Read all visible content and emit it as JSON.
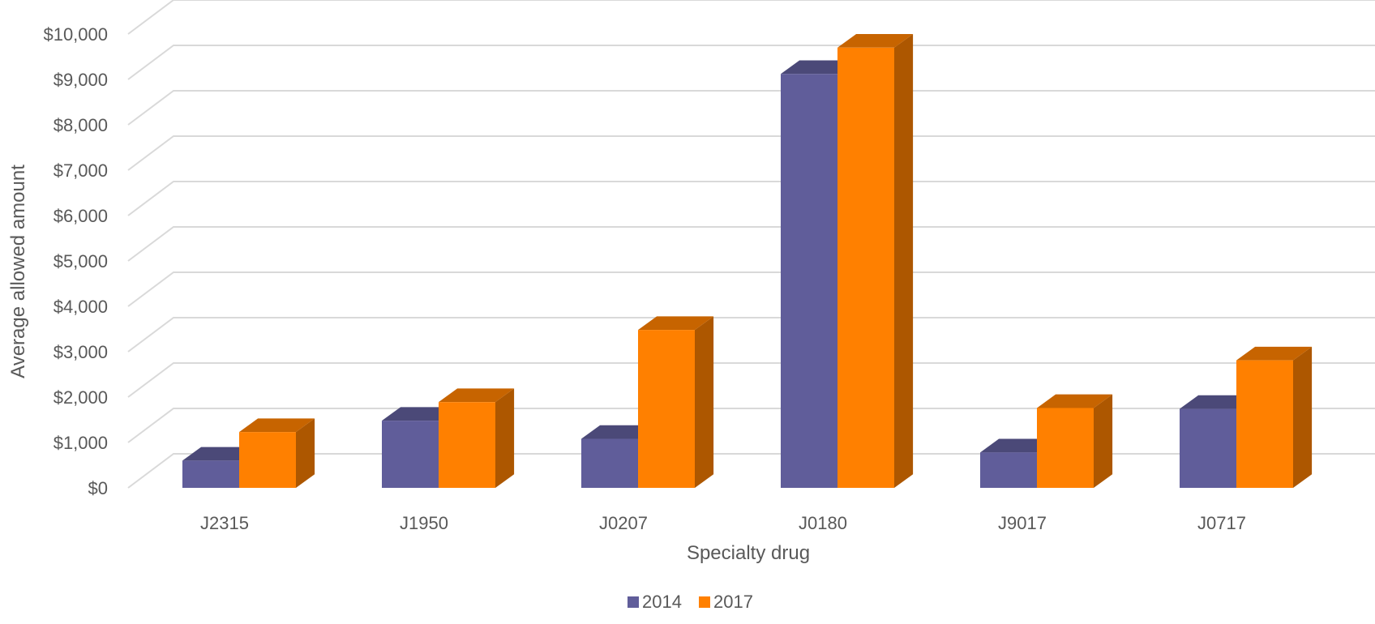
{
  "chart_data": {
    "type": "bar",
    "style": "3d-clustered-column",
    "title": "",
    "xlabel": "Specialty drug",
    "ylabel": "Average allowed amount",
    "categories": [
      "J2315",
      "J1950",
      "J0207",
      "J0180",
      "J9017",
      "J0717"
    ],
    "series": [
      {
        "name": "2014",
        "color": "#605d9a",
        "values": [
          600,
          1480,
          1080,
          9120,
          780,
          1740
        ]
      },
      {
        "name": "2017",
        "color": "#ff8000",
        "values": [
          1230,
          1890,
          3480,
          9700,
          1760,
          2810
        ]
      }
    ],
    "ylim": [
      0,
      10000
    ],
    "yticks": [
      "$0",
      "$1,000",
      "$2,000",
      "$3,000",
      "$4,000",
      "$5,000",
      "$6,000",
      "$7,000",
      "$8,000",
      "$9,000",
      "$10,000"
    ],
    "grid": true,
    "legend_position": "bottom"
  }
}
